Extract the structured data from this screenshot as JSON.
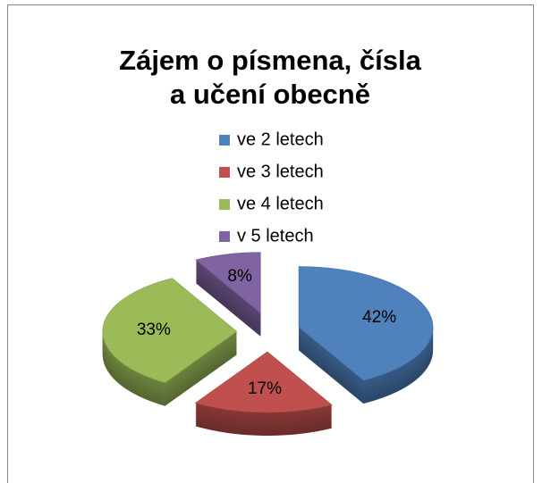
{
  "chart_data": {
    "type": "pie3d",
    "title": [
      "Zájem o písmena, čísla",
      "a učení obecně"
    ],
    "categories": [
      "ve 2 letech",
      "ve 3 letech",
      "ve 4 letech",
      "v 5 letech"
    ],
    "values": [
      42,
      17,
      33,
      8
    ],
    "value_labels": [
      "42%",
      "17%",
      "33%",
      "8%"
    ],
    "colors": [
      "#4f81bd",
      "#c0504d",
      "#9bbb59",
      "#8064a2"
    ],
    "legend": "top"
  }
}
